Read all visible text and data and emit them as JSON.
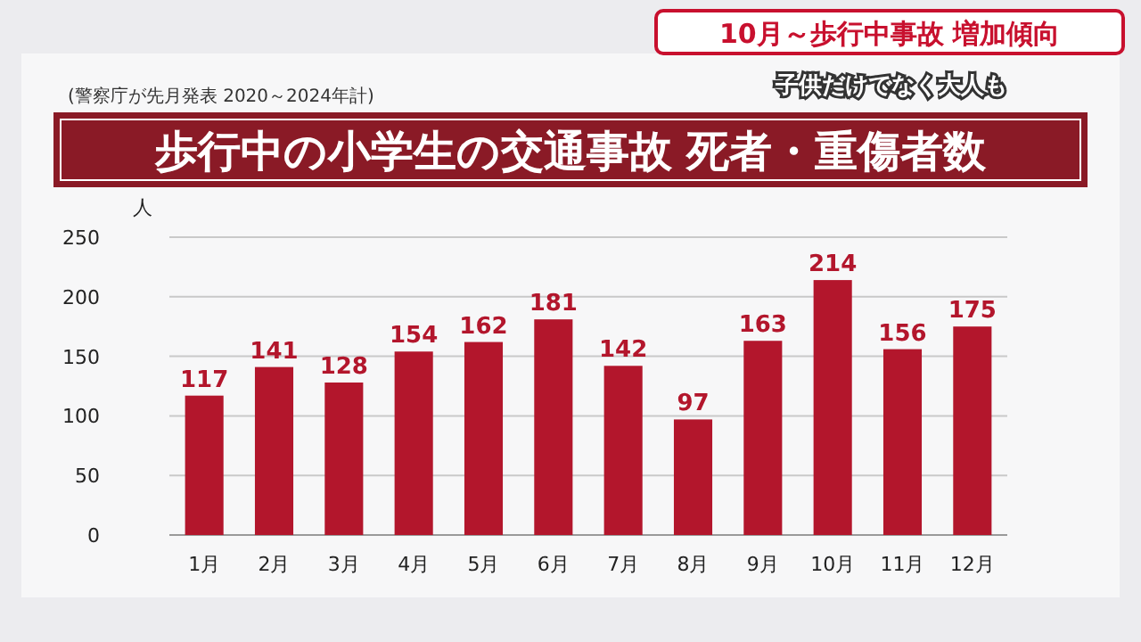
{
  "chart_data": {
    "type": "bar",
    "title": "歩行中の小学生の交通事故 死者・重傷者数",
    "subtitle": "(警察庁が先月発表 2020～2024年計)",
    "ylabel": "人",
    "annotations": [
      "10月～歩行中事故 増加傾向",
      "子供だけでなく大人も"
    ],
    "categories": [
      "1月",
      "2月",
      "3月",
      "4月",
      "5月",
      "6月",
      "7月",
      "8月",
      "9月",
      "10月",
      "11月",
      "12月"
    ],
    "values": [
      117,
      141,
      128,
      154,
      162,
      181,
      142,
      97,
      163,
      214,
      156,
      175
    ],
    "color": "#b3162c",
    "ylim": [
      0,
      250
    ],
    "yticks": [
      0,
      50,
      100,
      150,
      200,
      250
    ],
    "grid": "y",
    "data_labels": true
  }
}
